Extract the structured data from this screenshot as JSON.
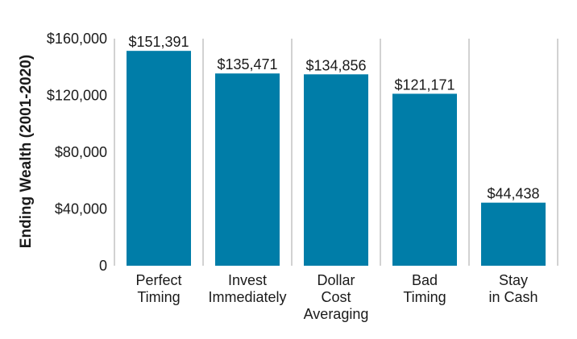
{
  "chart_data": {
    "type": "bar",
    "ylabel": "Ending Wealth (2001-2020)",
    "xlabel": "",
    "title": "",
    "ylim": [
      0,
      160000
    ],
    "yticks": [
      0,
      40000,
      80000,
      120000,
      160000
    ],
    "ytick_labels": [
      "0",
      "$40,000",
      "$80,000",
      "$120,000",
      "$160,000"
    ],
    "categories": [
      [
        "Perfect",
        "Timing"
      ],
      [
        "Invest",
        "Immediately"
      ],
      [
        "Dollar",
        "Cost",
        "Averaging"
      ],
      [
        "Bad",
        "Timing"
      ],
      [
        "Stay",
        "in Cash"
      ]
    ],
    "values": [
      151391,
      135471,
      134856,
      121171,
      44438
    ],
    "data_labels": [
      "$151,391",
      "$135,471",
      "$134,856",
      "$121,171",
      "$44,438"
    ],
    "bar_color": "#007DA8",
    "separator_color": "#b3b3b3",
    "grid": false,
    "legend": "none"
  }
}
